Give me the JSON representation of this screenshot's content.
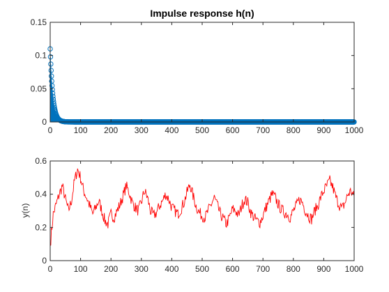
{
  "colors": {
    "background": "#ffffff",
    "axes": "#262626",
    "stem": "#0072bd",
    "signal": "#ff0000"
  },
  "chart_data": [
    {
      "type": "scatter",
      "style": "stem with circle markers",
      "title": "Impulse response h(n)",
      "xlabel": "",
      "ylabel": "",
      "xlim": [
        0,
        1000
      ],
      "ylim": [
        0,
        0.15
      ],
      "xticks": [
        "0",
        "100",
        "200",
        "300",
        "400",
        "500",
        "600",
        "700",
        "800",
        "900",
        "1000"
      ],
      "yticks": [
        "0",
        "0.05",
        "0.1",
        "0.15"
      ],
      "decay": {
        "amplitude": 0.11,
        "ratio": 0.89
      },
      "n_points": 1001,
      "grid": false,
      "legend": "none"
    },
    {
      "type": "line",
      "title": "",
      "xlabel": "",
      "ylabel": "y(n)",
      "xlim": [
        0,
        1000
      ],
      "ylim": [
        0,
        0.6
      ],
      "xticks": [
        "0",
        "100",
        "200",
        "300",
        "400",
        "500",
        "600",
        "700",
        "800",
        "900",
        "1000"
      ],
      "yticks": [
        "0",
        "0.2",
        "0.4",
        "0.6"
      ],
      "series": [
        {
          "x_step": 10,
          "values": [
            0.09,
            0.28,
            0.34,
            0.4,
            0.45,
            0.37,
            0.3,
            0.36,
            0.48,
            0.55,
            0.5,
            0.42,
            0.38,
            0.33,
            0.28,
            0.32,
            0.36,
            0.3,
            0.24,
            0.22,
            0.28,
            0.26,
            0.3,
            0.34,
            0.39,
            0.45,
            0.41,
            0.35,
            0.32,
            0.3,
            0.35,
            0.42,
            0.38,
            0.3,
            0.27,
            0.29,
            0.33,
            0.36,
            0.4,
            0.37,
            0.32,
            0.3,
            0.28,
            0.31,
            0.35,
            0.41,
            0.46,
            0.39,
            0.33,
            0.29,
            0.27,
            0.26,
            0.3,
            0.34,
            0.38,
            0.33,
            0.28,
            0.25,
            0.22,
            0.26,
            0.31,
            0.3,
            0.27,
            0.33,
            0.37,
            0.35,
            0.29,
            0.26,
            0.24,
            0.23,
            0.27,
            0.32,
            0.36,
            0.4,
            0.38,
            0.34,
            0.31,
            0.29,
            0.28,
            0.26,
            0.3,
            0.33,
            0.37,
            0.35,
            0.3,
            0.27,
            0.25,
            0.3,
            0.33,
            0.38,
            0.42,
            0.45,
            0.48,
            0.44,
            0.38,
            0.34,
            0.31,
            0.35,
            0.4,
            0.42,
            0.38
          ]
        }
      ],
      "grid": false,
      "legend": "none"
    }
  ]
}
